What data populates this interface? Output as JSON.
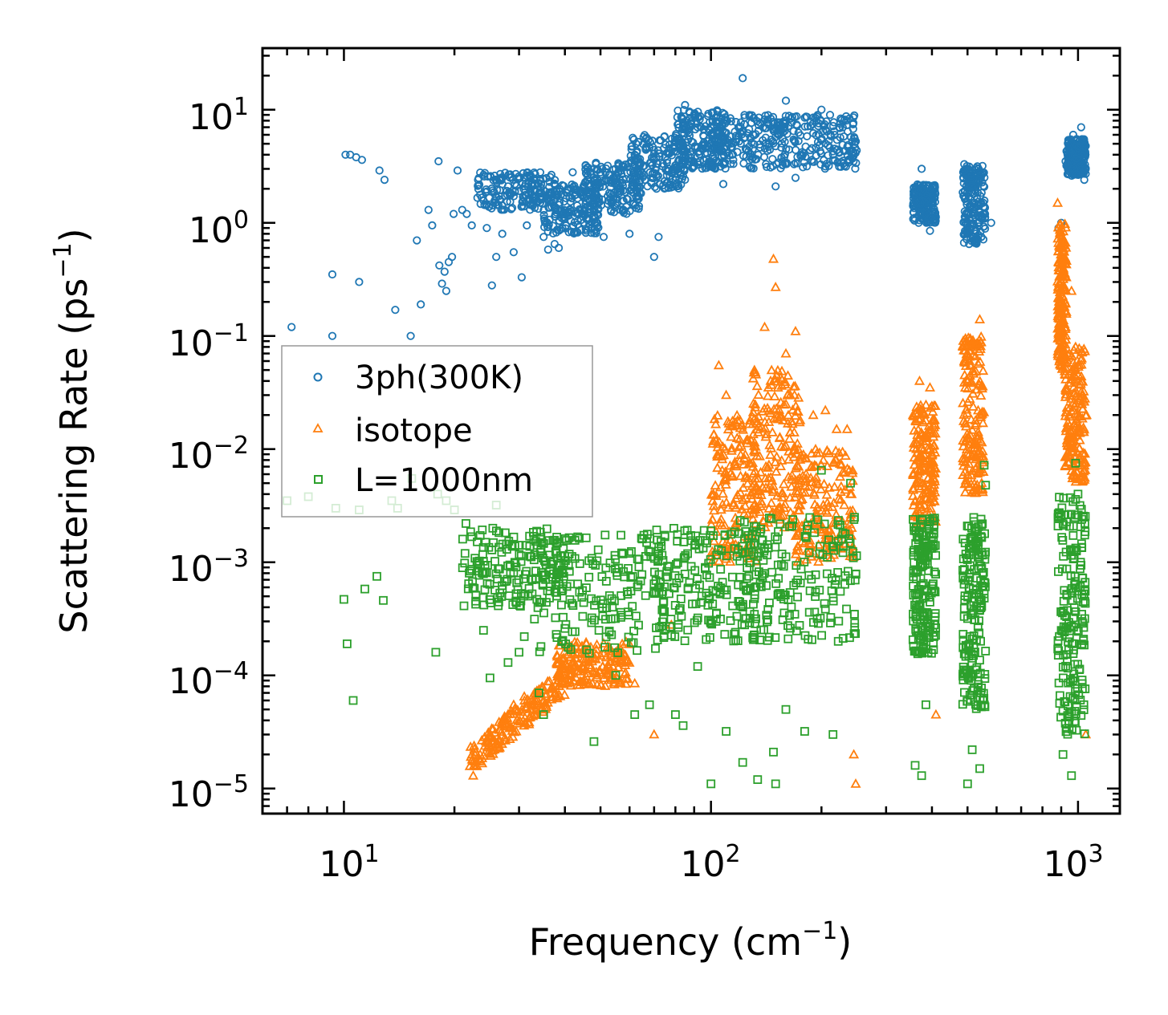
{
  "chart_data": {
    "type": "scatter",
    "title": "",
    "xlabel": "Frequency (cm",
    "xlabel_exp": "−1",
    "xlabel_end": ")",
    "ylabel": "Scattering Rate (ps",
    "ylabel_exp": "−1",
    "ylabel_end": ")",
    "xscale": "log",
    "yscale": "log",
    "xlim": [
      6.0,
      1300.0
    ],
    "ylim": [
      6e-06,
      35
    ],
    "grid": false,
    "legend_position": "center-left",
    "x_ticks": [
      {
        "base": "10",
        "exp": "1",
        "value": 10
      },
      {
        "base": "10",
        "exp": "2",
        "value": 100
      },
      {
        "base": "10",
        "exp": "3",
        "value": 1000
      }
    ],
    "y_ticks": [
      {
        "base": "10",
        "exp": "1",
        "value": 10
      },
      {
        "base": "10",
        "exp": "0",
        "value": 1
      },
      {
        "base": "10",
        "exp": "−1",
        "value": 0.1
      },
      {
        "base": "10",
        "exp": "−2",
        "value": 0.01
      },
      {
        "base": "10",
        "exp": "−3",
        "value": 0.001
      },
      {
        "base": "10",
        "exp": "−4",
        "value": 0.0001
      },
      {
        "base": "10",
        "exp": "−5",
        "value": 1e-05
      }
    ],
    "series": [
      {
        "name": "3ph(300K)",
        "marker": "circle",
        "color": "#1f77b4",
        "points": [
          [
            7.2,
            0.12
          ],
          [
            9.3,
            0.35
          ],
          [
            9.3,
            0.1
          ],
          [
            10.1,
            4.0
          ],
          [
            10.4,
            4.0
          ],
          [
            10.8,
            3.8
          ],
          [
            11.0,
            0.3
          ],
          [
            11.2,
            3.6
          ],
          [
            12.5,
            2.9
          ],
          [
            12.9,
            2.4
          ],
          [
            13.8,
            0.17
          ],
          [
            15.2,
            0.1
          ],
          [
            15.8,
            0.7
          ],
          [
            16.2,
            0.19
          ],
          [
            17.0,
            1.3
          ],
          [
            17.4,
            0.95
          ],
          [
            18.1,
            3.5
          ],
          [
            18.2,
            0.42
          ],
          [
            18.5,
            0.29
          ],
          [
            18.8,
            0.37
          ],
          [
            19.0,
            0.25
          ],
          [
            19.3,
            0.45
          ],
          [
            19.7,
            0.5
          ],
          [
            19.9,
            1.2
          ],
          [
            20.4,
            2.9
          ],
          [
            21.0,
            1.3
          ],
          [
            21.6,
            1.2
          ],
          [
            22.3,
            0.95
          ],
          [
            23.2,
            2.4
          ],
          [
            24.5,
            0.9
          ],
          [
            25.3,
            0.28
          ],
          [
            26.0,
            0.5
          ],
          [
            27.0,
            0.8
          ],
          [
            28.0,
            2.1
          ],
          [
            29.0,
            0.55
          ],
          [
            30.5,
            0.33
          ],
          [
            31.5,
            0.95
          ],
          [
            33.0,
            1.9
          ],
          [
            35.0,
            0.75
          ],
          [
            36.0,
            0.58
          ],
          [
            37.5,
            0.65
          ],
          [
            38.5,
            0.6
          ],
          [
            40.0,
            1.1
          ],
          [
            42.0,
            2.8
          ],
          [
            45.0,
            2.1
          ],
          [
            48.0,
            1.5
          ],
          [
            51.0,
            0.75
          ],
          [
            54.0,
            2.3
          ],
          [
            58.0,
            3.1
          ],
          [
            60.0,
            0.8
          ],
          [
            62.0,
            2.9
          ],
          [
            66.0,
            2.4
          ],
          [
            70.0,
            0.5
          ],
          [
            72.0,
            0.75
          ],
          [
            75.0,
            3.8
          ],
          [
            80.0,
            5.2
          ],
          [
            85.0,
            11.0
          ],
          [
            92.0,
            7.0
          ],
          [
            100.0,
            6.1
          ],
          [
            108.0,
            2.2
          ],
          [
            115.0,
            3.6
          ],
          [
            122.0,
            19.0
          ],
          [
            130.0,
            4.5
          ],
          [
            140.0,
            8.2
          ],
          [
            150.0,
            2.1
          ],
          [
            160.0,
            12.0
          ],
          [
            170.0,
            2.5
          ],
          [
            180.0,
            8.5
          ],
          [
            190.0,
            6.2
          ],
          [
            200.0,
            10.0
          ],
          [
            215.0,
            4.0
          ],
          [
            230.0,
            5.8
          ],
          [
            245.0,
            4.1
          ],
          [
            358.0,
            1.9
          ],
          [
            362.0,
            1.4
          ],
          [
            368.0,
            1.0
          ],
          [
            375.0,
            3.0
          ],
          [
            385.0,
            1.6
          ],
          [
            395.0,
            0.85
          ],
          [
            402.0,
            1.8
          ],
          [
            408.0,
            1.2
          ],
          [
            490.0,
            3.3
          ],
          [
            500.0,
            1.0
          ],
          [
            505.0,
            0.65
          ],
          [
            512.0,
            2.1
          ],
          [
            520.0,
            1.5
          ],
          [
            535.0,
            3.0
          ],
          [
            545.0,
            0.75
          ],
          [
            558.0,
            1.2
          ],
          [
            580.0,
            1.0
          ],
          [
            885.0,
            0.9
          ],
          [
            900.0,
            1.0
          ],
          [
            925.0,
            3.5
          ],
          [
            945.0,
            2.7
          ],
          [
            970.0,
            6.0
          ],
          [
            1000.0,
            4.6
          ],
          [
            1020.0,
            7.0
          ],
          [
            1040.0,
            2.4
          ]
        ],
        "bands": [
          {
            "xmin": 23,
            "xmax": 38,
            "ymin": 1.3,
            "ymax": 2.8
          },
          {
            "xmin": 35,
            "xmax": 50,
            "ymin": 0.8,
            "ymax": 2.2
          },
          {
            "xmin": 45,
            "xmax": 65,
            "ymin": 1.2,
            "ymax": 3.5
          },
          {
            "xmin": 60,
            "xmax": 85,
            "ymin": 2.0,
            "ymax": 6.0
          },
          {
            "xmin": 80,
            "xmax": 110,
            "ymin": 3.0,
            "ymax": 10.0
          },
          {
            "xmin": 100,
            "xmax": 160,
            "ymin": 3.0,
            "ymax": 9.0
          },
          {
            "xmin": 150,
            "xmax": 250,
            "ymin": 3.0,
            "ymax": 9.0
          },
          {
            "xmin": 355,
            "xmax": 410,
            "ymin": 1.0,
            "ymax": 2.2
          },
          {
            "xmin": 485,
            "xmax": 560,
            "ymin": 0.65,
            "ymax": 3.2
          },
          {
            "xmin": 930,
            "xmax": 1050,
            "ymin": 2.6,
            "ymax": 5.5
          }
        ]
      },
      {
        "name": "isotope",
        "marker": "triangle",
        "color": "#ff7f0e",
        "points": [
          [
            22.5,
            1.3e-05
          ],
          [
            23.5,
            2e-05
          ],
          [
            25.0,
            2.8e-05
          ],
          [
            27.0,
            4e-05
          ],
          [
            29.0,
            5.5e-05
          ],
          [
            31.0,
            6.5e-05
          ],
          [
            34.0,
            7.5e-05
          ],
          [
            38.0,
            0.00013
          ],
          [
            45.0,
            0.00014
          ],
          [
            55.0,
            0.00016
          ],
          [
            62.0,
            8.5e-05
          ],
          [
            70.0,
            3e-05
          ],
          [
            78.0,
            0.00028
          ],
          [
            105.0,
            0.055
          ],
          [
            110.0,
            0.03
          ],
          [
            120.0,
            0.018
          ],
          [
            125.0,
            0.012
          ],
          [
            140.0,
            0.12
          ],
          [
            148.0,
            0.48
          ],
          [
            150.0,
            0.27
          ],
          [
            160.0,
            0.07
          ],
          [
            170.0,
            0.11
          ],
          [
            175.0,
            0.018
          ],
          [
            190.0,
            0.02
          ],
          [
            205.0,
            0.022
          ],
          [
            220.0,
            0.015
          ],
          [
            235.0,
            0.015
          ],
          [
            245.0,
            2e-05
          ],
          [
            248.0,
            1.1e-05
          ],
          [
            355.0,
            0.02
          ],
          [
            370.0,
            0.04
          ],
          [
            395.0,
            0.035
          ],
          [
            410.0,
            4.5e-05
          ],
          [
            490.0,
            0.06
          ],
          [
            540.0,
            0.14
          ],
          [
            545.0,
            0.02
          ],
          [
            880.0,
            1.5
          ],
          [
            900.0,
            0.9
          ],
          [
            910.0,
            0.7
          ],
          [
            960.0,
            0.25
          ],
          [
            985.0,
            0.08
          ],
          [
            1010.0,
            0.015
          ],
          [
            1050.0,
            3e-05
          ],
          [
            1055.0,
            0.02
          ]
        ],
        "bands": [
          {
            "xmin": 22,
            "xmax": 40,
            "ymin": 1.8e-05,
            "ymax": 9e-05,
            "trend": "rising"
          },
          {
            "xmin": 38,
            "xmax": 60,
            "ymin": 8e-05,
            "ymax": 0.0002
          },
          {
            "xmin": 100,
            "xmax": 135,
            "ymin": 0.001,
            "ymax": 0.02
          },
          {
            "xmin": 130,
            "xmax": 175,
            "ymin": 0.002,
            "ymax": 0.05
          },
          {
            "xmin": 170,
            "xmax": 245,
            "ymin": 0.001,
            "ymax": 0.01
          },
          {
            "xmin": 355,
            "xmax": 410,
            "ymin": 0.002,
            "ymax": 0.025
          },
          {
            "xmin": 485,
            "xmax": 555,
            "ymin": 0.004,
            "ymax": 0.1
          },
          {
            "xmin": 880,
            "xmax": 930,
            "ymin": 0.05,
            "ymax": 1.0
          },
          {
            "xmin": 920,
            "xmax": 1050,
            "ymin": 0.005,
            "ymax": 0.08
          }
        ]
      },
      {
        "name": "L=1000nm",
        "marker": "square",
        "color": "#2ca02c",
        "points": [
          [
            7.0,
            0.0035
          ],
          [
            8.0,
            0.0038
          ],
          [
            9.5,
            0.003
          ],
          [
            10.0,
            0.00047
          ],
          [
            10.2,
            0.00019
          ],
          [
            10.6,
            6e-05
          ],
          [
            11.0,
            0.0029
          ],
          [
            11.4,
            0.00058
          ],
          [
            12.3,
            0.00075
          ],
          [
            12.8,
            0.00046
          ],
          [
            13.5,
            0.0035
          ],
          [
            14.0,
            0.003
          ],
          [
            15.3,
            0.0055
          ],
          [
            17.8,
            0.00016
          ],
          [
            18.0,
            0.004
          ],
          [
            19.0,
            0.0035
          ],
          [
            20.0,
            0.0029
          ],
          [
            21.5,
            0.0022
          ],
          [
            24.0,
            0.00025
          ],
          [
            25.0,
            9.5e-05
          ],
          [
            26.0,
            0.0032
          ],
          [
            28.0,
            0.00013
          ],
          [
            30.0,
            0.00016
          ],
          [
            31.0,
            0.00022
          ],
          [
            34.0,
            7e-05
          ],
          [
            35.0,
            4.5e-05
          ],
          [
            40.0,
            0.00026
          ],
          [
            48.0,
            2.6e-05
          ],
          [
            55.0,
            0.0001
          ],
          [
            62.0,
            4.5e-05
          ],
          [
            68.0,
            5.5e-05
          ],
          [
            80.0,
            4.5e-05
          ],
          [
            84.0,
            3.6e-05
          ],
          [
            92.0,
            0.00012
          ],
          [
            100.0,
            1.1e-05
          ],
          [
            110.0,
            3.2e-05
          ],
          [
            122.0,
            1.7e-05
          ],
          [
            134.0,
            1.2e-05
          ],
          [
            148.0,
            2.1e-05
          ],
          [
            150.0,
            1.1e-05
          ],
          [
            160.0,
            5e-05
          ],
          [
            180.0,
            3.2e-05
          ],
          [
            200.0,
            0.0065
          ],
          [
            215.0,
            3e-05
          ],
          [
            240.0,
            0.005
          ],
          [
            360.0,
            1.6e-05
          ],
          [
            375.0,
            1.3e-05
          ],
          [
            385.0,
            5.5e-05
          ],
          [
            500.0,
            1.1e-05
          ],
          [
            515.0,
            2.2e-05
          ],
          [
            540.0,
            1.5e-05
          ],
          [
            555.0,
            0.0072
          ],
          [
            560.0,
            0.0048
          ],
          [
            910.0,
            2e-05
          ],
          [
            960.0,
            1.3e-05
          ],
          [
            985.0,
            0.0075
          ],
          [
            1000.0,
            0.004
          ],
          [
            1035.0,
            0.0025
          ],
          [
            1045.0,
            0.00045
          ]
        ],
        "bands": [
          {
            "xmin": 21,
            "xmax": 40,
            "ymin": 0.0004,
            "ymax": 0.002
          },
          {
            "xmin": 33,
            "xmax": 75,
            "ymin": 0.00015,
            "ymax": 0.0018
          },
          {
            "xmin": 70,
            "xmax": 140,
            "ymin": 0.0002,
            "ymax": 0.002
          },
          {
            "xmin": 120,
            "xmax": 250,
            "ymin": 0.0002,
            "ymax": 0.0025
          },
          {
            "xmin": 355,
            "xmax": 410,
            "ymin": 0.00015,
            "ymax": 0.0025
          },
          {
            "xmin": 485,
            "xmax": 560,
            "ymin": 5e-05,
            "ymax": 0.0025
          },
          {
            "xmin": 880,
            "xmax": 1050,
            "ymin": 3e-05,
            "ymax": 0.004
          }
        ]
      }
    ]
  }
}
